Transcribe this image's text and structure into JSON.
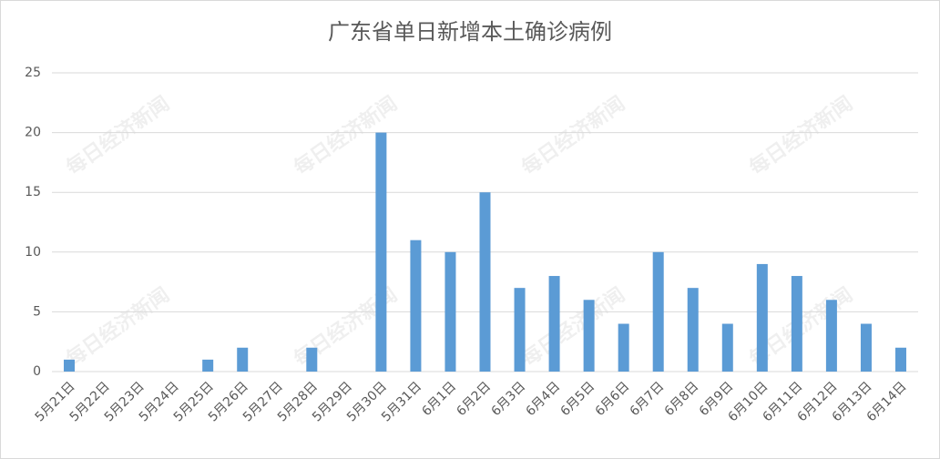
{
  "chart_data": {
    "type": "bar",
    "title": "广东省单日新增本土确诊病例",
    "watermark": "每日经济新闻",
    "categories": [
      "5月21日",
      "5月22日",
      "5月23日",
      "5月24日",
      "5月25日",
      "5月26日",
      "5月27日",
      "5月28日",
      "5月29日",
      "5月30日",
      "5月31日",
      "6月1日",
      "6月2日",
      "6月3日",
      "6月4日",
      "6月5日",
      "6月6日",
      "6月7日",
      "6月8日",
      "6月9日",
      "6月10日",
      "6月11日",
      "6月12日",
      "6月13日",
      "6月14日"
    ],
    "values": [
      1,
      0,
      0,
      0,
      1,
      2,
      0,
      2,
      0,
      20,
      11,
      10,
      15,
      7,
      8,
      6,
      4,
      10,
      7,
      4,
      9,
      8,
      6,
      4,
      2
    ],
    "color": "#5b9bd5",
    "ylim": [
      0,
      25
    ],
    "yticks": [
      0,
      5,
      10,
      15,
      20,
      25
    ],
    "grid": true
  }
}
